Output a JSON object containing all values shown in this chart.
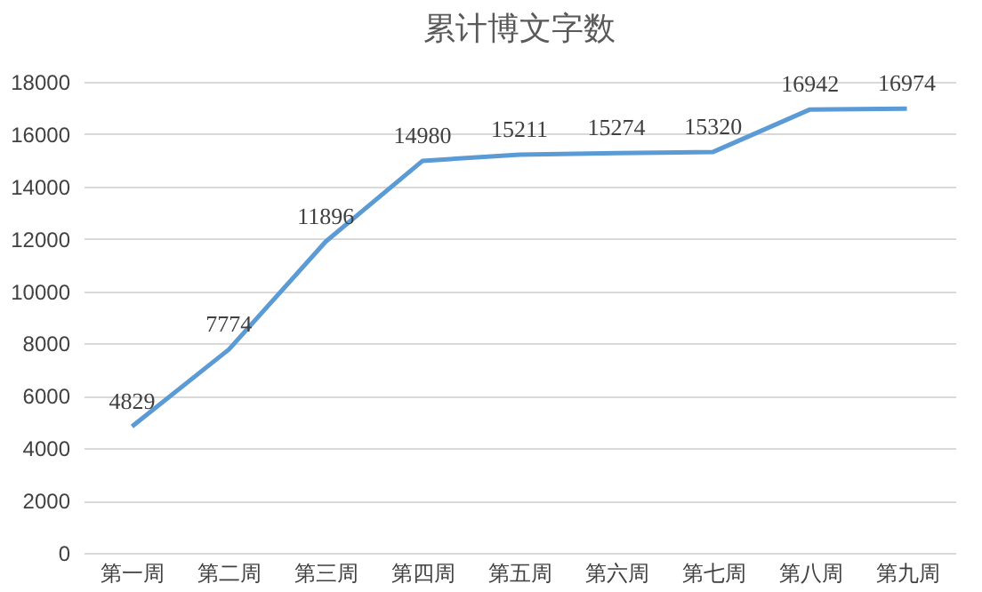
{
  "chart_data": {
    "type": "line",
    "title": "累计博文字数",
    "categories": [
      "第一周",
      "第二周",
      "第三周",
      "第四周",
      "第五周",
      "第六周",
      "第七周",
      "第八周",
      "第九周"
    ],
    "series": [
      {
        "color": "#5b9bd5",
        "values": [
          4829,
          7774,
          11896,
          14980,
          15211,
          15274,
          15320,
          16942,
          16974
        ]
      }
    ],
    "ylim": [
      0,
      18000
    ],
    "yticks": [
      0,
      2000,
      4000,
      6000,
      8000,
      10000,
      12000,
      14000,
      16000,
      18000
    ],
    "grid": "y",
    "data_labels": true,
    "marker": "none",
    "line_style": "solid",
    "legend": false
  }
}
